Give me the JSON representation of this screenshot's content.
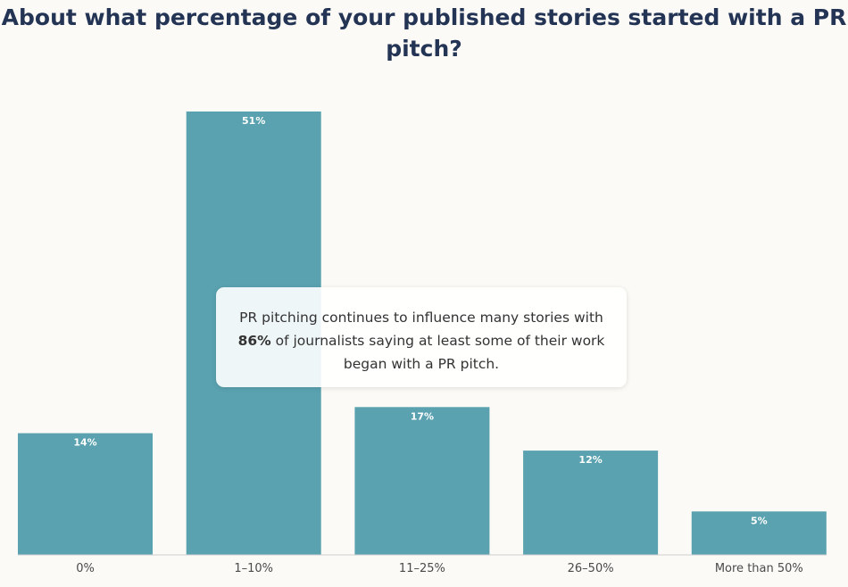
{
  "chart_data": {
    "type": "bar",
    "title": "About what percentage of your published stories started with a PR pitch?",
    "categories": [
      "0%",
      "1–10%",
      "11–25%",
      "26–50%",
      "More than 50%"
    ],
    "values": [
      14,
      51,
      17,
      12,
      5
    ],
    "value_labels": [
      "14%",
      "51%",
      "17%",
      "12%",
      "5%"
    ],
    "xlabel": "",
    "ylabel": "",
    "ylim": [
      0,
      51
    ],
    "grid": false,
    "bar_color": "#5aa2b0"
  },
  "callout": {
    "text_before": "PR pitching continues to influence many stories with",
    "highlight": "86%",
    "text_after": "of journalists saying at least some of their work began with a PR pitch."
  }
}
